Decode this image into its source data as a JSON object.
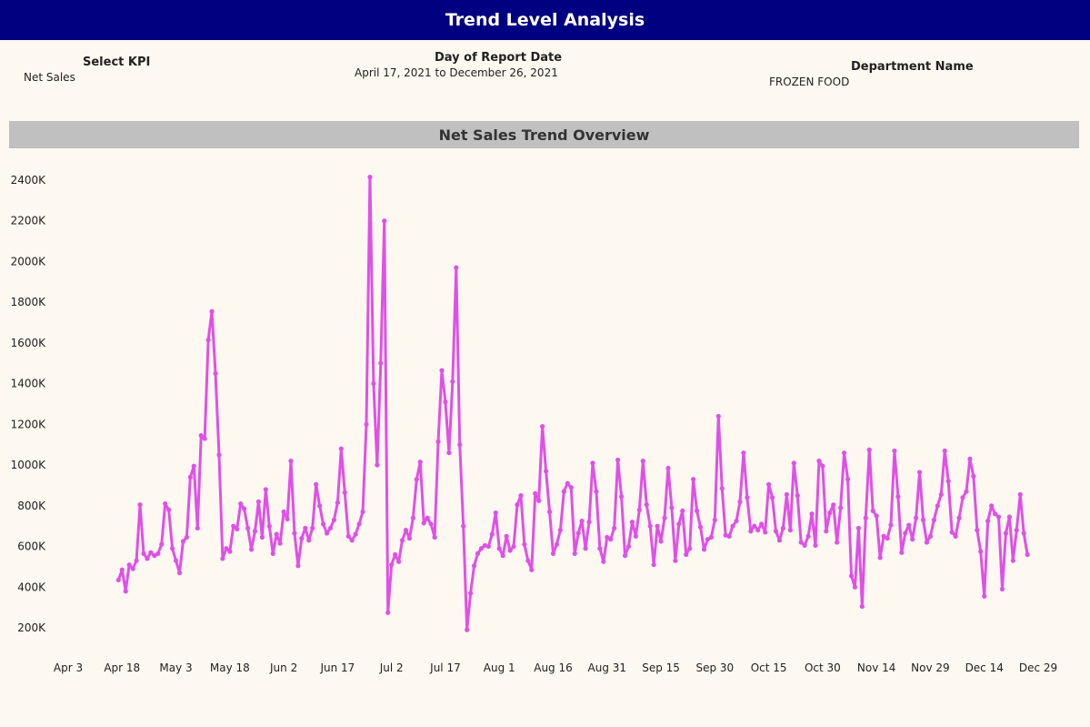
{
  "header": {
    "title": "Trend Level Analysis"
  },
  "filters": {
    "kpi": {
      "title": "Select KPI",
      "value": "Net Sales"
    },
    "date": {
      "title": "Day of Report Date",
      "value": "April 17, 2021 to December 26, 2021"
    },
    "department": {
      "title": "Department Name",
      "value": "FROZEN FOOD"
    }
  },
  "colors": {
    "title_bar": "#000080",
    "section_header": "#c0c0c0",
    "line": "#e050e8",
    "background": "#fdf8f0"
  },
  "chart_data": {
    "type": "line",
    "title": "Net Sales Trend Overview",
    "xlabel": "",
    "ylabel": "",
    "grid": false,
    "x_start": "2021-04-17",
    "x_end": "2021-12-26",
    "xlim": [
      "2021-04-03",
      "2021-12-29"
    ],
    "ylim": [
      150000,
      2450000
    ],
    "x_ticks": [
      {
        "date": "2021-04-03",
        "label": "Apr 3"
      },
      {
        "date": "2021-04-18",
        "label": "Apr 18"
      },
      {
        "date": "2021-05-03",
        "label": "May 3"
      },
      {
        "date": "2021-05-18",
        "label": "May 18"
      },
      {
        "date": "2021-06-02",
        "label": "Jun 2"
      },
      {
        "date": "2021-06-17",
        "label": "Jun 17"
      },
      {
        "date": "2021-07-02",
        "label": "Jul 2"
      },
      {
        "date": "2021-07-17",
        "label": "Jul 17"
      },
      {
        "date": "2021-08-01",
        "label": "Aug 1"
      },
      {
        "date": "2021-08-16",
        "label": "Aug 16"
      },
      {
        "date": "2021-08-31",
        "label": "Aug 31"
      },
      {
        "date": "2021-09-15",
        "label": "Sep 15"
      },
      {
        "date": "2021-09-30",
        "label": "Sep 30"
      },
      {
        "date": "2021-10-15",
        "label": "Oct 15"
      },
      {
        "date": "2021-10-30",
        "label": "Oct 30"
      },
      {
        "date": "2021-11-14",
        "label": "Nov 14"
      },
      {
        "date": "2021-11-29",
        "label": "Nov 29"
      },
      {
        "date": "2021-12-14",
        "label": "Dec 14"
      },
      {
        "date": "2021-12-29",
        "label": "Dec 29"
      }
    ],
    "y_ticks": [
      {
        "value": 200000,
        "label": "200K"
      },
      {
        "value": 400000,
        "label": "400K"
      },
      {
        "value": 600000,
        "label": "600K"
      },
      {
        "value": 800000,
        "label": "800K"
      },
      {
        "value": 1000000,
        "label": "1000K"
      },
      {
        "value": 1200000,
        "label": "1200K"
      },
      {
        "value": 1400000,
        "label": "1400K"
      },
      {
        "value": 1600000,
        "label": "1600K"
      },
      {
        "value": 1800000,
        "label": "1800K"
      },
      {
        "value": 2000000,
        "label": "2000K"
      },
      {
        "value": 2200000,
        "label": "2200K"
      },
      {
        "value": 2400000,
        "label": "2400K"
      }
    ],
    "series": [
      {
        "values": [
          435000,
          485000,
          380000,
          510000,
          490000,
          530000,
          805000,
          565000,
          540000,
          570000,
          555000,
          565000,
          610000,
          810000,
          780000,
          590000,
          530000,
          470000,
          625000,
          645000,
          940000,
          995000,
          690000,
          1145000,
          1130000,
          1615000,
          1755000,
          1450000,
          1050000,
          540000,
          590000,
          575000,
          700000,
          685000,
          810000,
          785000,
          690000,
          585000,
          675000,
          820000,
          645000,
          880000,
          700000,
          565000,
          660000,
          615000,
          770000,
          735000,
          1020000,
          665000,
          505000,
          640000,
          690000,
          630000,
          690000,
          905000,
          800000,
          710000,
          665000,
          690000,
          730000,
          815000,
          1080000,
          865000,
          650000,
          630000,
          660000,
          710000,
          770000,
          1200000,
          2415000,
          1400000,
          1000000,
          1500000,
          2200000,
          275000,
          510000,
          560000,
          525000,
          630000,
          680000,
          640000,
          740000,
          930000,
          1015000,
          715000,
          740000,
          710000,
          645000,
          1115000,
          1465000,
          1310000,
          1060000,
          1410000,
          1970000,
          1100000,
          700000,
          190000,
          370000,
          505000,
          565000,
          590000,
          605000,
          600000,
          660000,
          765000,
          590000,
          555000,
          650000,
          580000,
          600000,
          805000,
          850000,
          610000,
          530000,
          485000,
          860000,
          825000,
          1190000,
          970000,
          770000,
          565000,
          610000,
          680000,
          870000,
          910000,
          890000,
          565000,
          665000,
          725000,
          590000,
          720000,
          1010000,
          870000,
          590000,
          525000,
          645000,
          635000,
          690000,
          1025000,
          845000,
          555000,
          600000,
          720000,
          650000,
          780000,
          1020000,
          805000,
          700000,
          510000,
          700000,
          625000,
          740000,
          985000,
          790000,
          530000,
          710000,
          775000,
          560000,
          590000,
          930000,
          775000,
          695000,
          585000,
          635000,
          645000,
          730000,
          1240000,
          885000,
          655000,
          650000,
          700000,
          725000,
          820000,
          1060000,
          840000,
          675000,
          700000,
          680000,
          710000,
          670000,
          905000,
          840000,
          675000,
          630000,
          690000,
          855000,
          680000,
          1010000,
          850000,
          620000,
          605000,
          650000,
          760000,
          605000,
          1020000,
          995000,
          675000,
          765000,
          805000,
          620000,
          790000,
          1060000,
          930000,
          455000,
          400000,
          690000,
          305000,
          740000,
          1075000,
          775000,
          750000,
          545000,
          650000,
          640000,
          705000,
          1070000,
          845000,
          570000,
          665000,
          705000,
          635000,
          740000,
          965000,
          730000,
          620000,
          650000,
          730000,
          800000,
          855000,
          1070000,
          920000,
          670000,
          650000,
          740000,
          840000,
          870000,
          1030000,
          945000,
          680000,
          575000,
          355000,
          725000,
          800000,
          760000,
          745000,
          390000,
          665000,
          745000,
          530000,
          680000,
          855000,
          665000,
          560000
        ]
      }
    ]
  }
}
